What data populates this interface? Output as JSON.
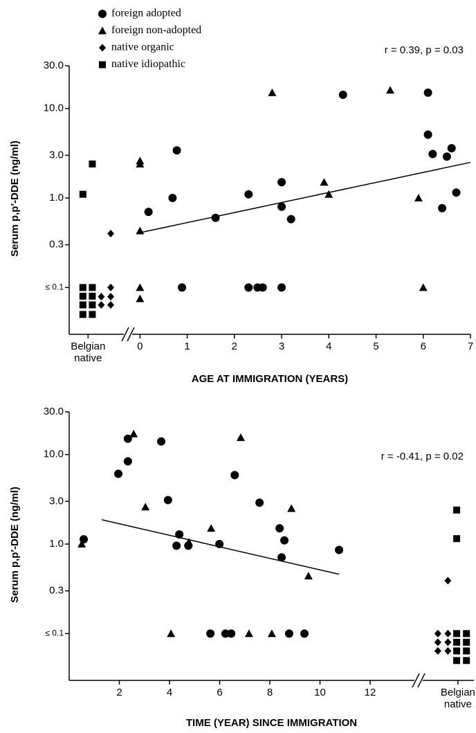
{
  "chart_data": [
    {
      "type": "scatter",
      "annotation": "r = 0.39, p = 0.03",
      "xlabel": "AGE AT IMMIGRATION (YEARS)",
      "ylabel": "Serum p,p′-DDE (ng/ml)",
      "xlim": [
        -1.5,
        7
      ],
      "ylim": [
        0.03,
        30
      ],
      "log_y": true,
      "legend": "top-left",
      "xticks": [
        {
          "value": -1.1,
          "label": "Belgian native"
        },
        0,
        1,
        2,
        3,
        4,
        5,
        6,
        7
      ],
      "yticks": [
        {
          "value": 0.1,
          "label": "≤ 0.1"
        },
        0.3,
        {
          "value": 1,
          "label": "1.0"
        },
        {
          "value": 3,
          "label": "3.0"
        },
        {
          "value": 10,
          "label": "10.0"
        },
        {
          "value": 30,
          "label": "30.0"
        }
      ],
      "fit": {
        "x": [
          0,
          7
        ],
        "y": [
          0.41,
          2.5
        ]
      },
      "series": [
        {
          "name": "foreign adopted",
          "color": "#000000",
          "marker": "circle",
          "x": [
            0.89,
            0.18,
            0.69,
            0.78,
            1.6,
            2.3,
            2.3,
            2.49,
            2.6,
            3.0,
            3.0,
            3.0,
            3.2,
            4.3,
            6.1,
            6.1,
            6.2,
            6.5,
            6.6,
            6.4,
            6.7
          ],
          "values": [
            0.1,
            0.7,
            1.0,
            3.4,
            0.6,
            1.1,
            0.1,
            0.1,
            0.1,
            1.5,
            0.8,
            0.1,
            0.58,
            14.2,
            15,
            5.1,
            3.1,
            2.9,
            3.6,
            0.77,
            1.15
          ]
        },
        {
          "name": "foreign non-adopted",
          "color": "#000000",
          "marker": "triangle",
          "x": [
            0,
            0,
            0,
            0,
            0,
            2.8,
            3.9,
            4.0,
            5.3,
            5.9,
            6.0
          ],
          "values": [
            2.6,
            2.4,
            0.43,
            0.1,
            0.075,
            15,
            1.5,
            1.1,
            16,
            1.0,
            0.1
          ]
        },
        {
          "name": "native organic",
          "color": "#000000",
          "marker": "diamond",
          "x": [
            -0.62,
            -0.62,
            -0.82,
            -0.62,
            -0.82,
            -0.62
          ],
          "values": [
            0.4,
            0.1,
            0.079,
            0.079,
            0.064,
            0.064
          ]
        },
        {
          "name": "native idiopathic",
          "color": "#000000",
          "marker": "square",
          "x": [
            -1.01,
            -1.21,
            -1.21,
            -1.01,
            -1.21,
            -1.01,
            -1.21,
            -1.01,
            -1.21,
            -1.01
          ],
          "values": [
            2.4,
            1.1,
            0.1,
            0.1,
            0.08,
            0.08,
            0.064,
            0.064,
            0.05,
            0.05
          ]
        }
      ]
    },
    {
      "type": "scatter",
      "annotation": "r = -0.41, p = 0.02",
      "xlabel": "TIME (YEAR) SINCE IMMIGRATION",
      "ylabel": "Serum p,p′-DDE (ng/ml)",
      "xlim": [
        0,
        16
      ],
      "ylim": [
        0.03,
        30
      ],
      "log_y": true,
      "xticks": [
        2,
        4,
        6,
        8,
        10,
        12,
        {
          "value": 15.5,
          "label": "Belgian native"
        }
      ],
      "yticks": [
        {
          "value": 0.1,
          "label": "≤ 0.1"
        },
        0.3,
        {
          "value": 1,
          "label": "1.0"
        },
        {
          "value": 3,
          "label": "3.0"
        },
        {
          "value": 10,
          "label": "10.0"
        },
        {
          "value": 30,
          "label": "30.0"
        }
      ],
      "fit": {
        "x": [
          1.3,
          10.76
        ],
        "y": [
          1.87,
          0.46
        ]
      },
      "series": [
        {
          "color": "#000000",
          "marker": "circle",
          "x": [
            0.58,
            1.96,
            2.34,
            2.34,
            3.67,
            3.94,
            4.39,
            4.28,
            4.75,
            5.99,
            6.6,
            7.59,
            8.39,
            8.58,
            8.47,
            10.76,
            5.63,
            6.23,
            6.46,
            8.77,
            9.38
          ],
          "values": [
            1.13,
            6.1,
            8.4,
            15,
            14,
            3.1,
            1.28,
            0.96,
            0.96,
            1.0,
            5.9,
            2.9,
            1.5,
            1.1,
            0.71,
            0.86,
            0.1,
            0.1,
            0.1,
            0.1,
            0.1
          ]
        },
        {
          "color": "#000000",
          "marker": "triangle",
          "x": [
            0.5,
            2.57,
            3.04,
            4.06,
            4.77,
            5.66,
            6.84,
            7.17,
            8.08,
            8.86,
            9.54
          ],
          "values": [
            1.0,
            17,
            2.6,
            0.1,
            1.05,
            1.5,
            15.5,
            0.1,
            0.1,
            2.5,
            0.44
          ]
        },
        {
          "color": "#000000",
          "marker": "diamond",
          "x": [
            15.1,
            14.7,
            15.1,
            14.7,
            15.1,
            14.7,
            15.1
          ],
          "values": [
            0.39,
            0.1,
            0.1,
            0.08,
            0.08,
            0.064,
            0.064
          ]
        },
        {
          "color": "#000000",
          "marker": "square",
          "x": [
            15.45,
            15.45,
            15.45,
            15.84,
            15.45,
            15.84,
            15.45,
            15.84,
            15.45,
            15.84
          ],
          "values": [
            2.4,
            1.15,
            0.1,
            0.1,
            0.08,
            0.08,
            0.064,
            0.064,
            0.05,
            0.05
          ]
        }
      ]
    }
  ]
}
